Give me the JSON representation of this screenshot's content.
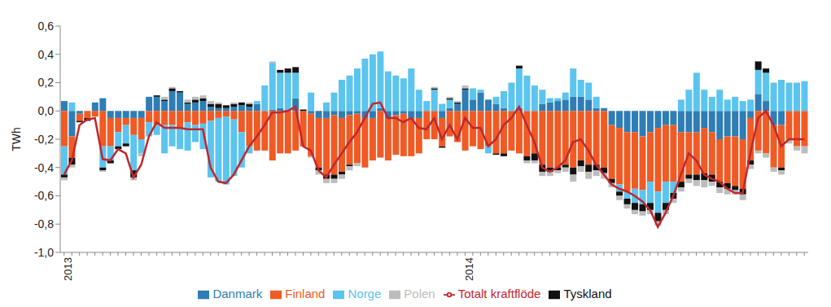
{
  "chart_data": {
    "type": "bar",
    "stacked": true,
    "y_label": "TWh",
    "legend": "bottom",
    "grid": false,
    "categories": [
      "2013",
      null,
      null,
      null,
      null,
      null,
      null,
      null,
      null,
      null,
      null,
      null,
      null,
      null,
      null,
      null,
      null,
      null,
      null,
      null,
      null,
      null,
      null,
      null,
      null,
      null,
      null,
      null,
      null,
      null,
      null,
      null,
      null,
      null,
      null,
      null,
      null,
      null,
      null,
      null,
      null,
      null,
      null,
      null,
      null,
      null,
      null,
      null,
      null,
      null,
      null,
      null,
      "2014",
      null,
      null,
      null,
      null,
      null,
      null,
      null,
      null,
      null,
      null,
      null,
      null,
      null,
      null,
      null,
      null,
      null,
      null,
      null,
      null,
      null,
      null,
      null,
      null,
      null,
      null,
      null,
      null,
      null,
      null,
      null,
      null,
      null,
      null,
      null,
      null,
      null,
      null,
      null,
      null,
      null,
      null,
      null,
      null
    ],
    "ylim": [
      -1.0,
      0.6
    ],
    "yticks": [
      {
        "value": 0.6,
        "label": "0,6"
      },
      {
        "value": 0.4,
        "label": "0,4"
      },
      {
        "value": 0.2,
        "label": "0,2"
      },
      {
        "value": 0,
        "label": "0,0"
      },
      {
        "value": -0.2,
        "label": "-0,2"
      },
      {
        "value": -0.4,
        "label": "-0,4"
      },
      {
        "value": -0.6,
        "label": "-0,6"
      },
      {
        "value": -0.8,
        "label": "-0,8"
      },
      {
        "value": -1.0,
        "label": "-1,0"
      }
    ],
    "series": [
      {
        "name": "Danmark",
        "type": "bar",
        "color": "#2e7db5",
        "values": [
          0.07,
          -0.18,
          -0.02,
          0,
          0.06,
          0.09,
          -0.05,
          -0.05,
          -0.05,
          -0.05,
          -0.05,
          0.1,
          0.1,
          0.07,
          0.14,
          0.13,
          0.05,
          0.06,
          0.07,
          0.03,
          0.02,
          0.02,
          0.03,
          0.04,
          0.03,
          0.05,
          0,
          0.01,
          0.02,
          0.01,
          0.09,
          0,
          -0.02,
          -0.05,
          -0.05,
          -0.03,
          -0.05,
          -0.03,
          -0.02,
          -0.05,
          -0.05,
          0.02,
          -0.05,
          -0.03,
          -0.02,
          -0.05,
          -0.05,
          0,
          0,
          -0.05,
          0.02,
          0.05,
          0.15,
          0.08,
          0.13,
          0.08,
          0.05,
          0.02,
          0,
          0.02,
          0,
          0,
          0.05,
          0.06,
          0.07,
          0.08,
          0.1,
          0.1,
          0.08,
          0.02,
          0.02,
          -0.1,
          -0.12,
          -0.15,
          -0.15,
          -0.18,
          -0.15,
          -0.12,
          -0.1,
          -0.1,
          -0.15,
          -0.15,
          -0.15,
          -0.12,
          -0.15,
          -0.2,
          -0.18,
          -0.18,
          -0.2,
          -0.05,
          0.12,
          0.07,
          -0.1,
          -0.1,
          0,
          0,
          0
        ]
      },
      {
        "name": "Finland",
        "type": "bar",
        "color": "#f05a24",
        "values": [
          -0.25,
          -0.15,
          -0.05,
          -0.05,
          -0.04,
          -0.25,
          -0.2,
          -0.1,
          -0.05,
          -0.12,
          -0.15,
          -0.08,
          -0.1,
          -0.1,
          -0.1,
          -0.12,
          -0.08,
          -0.1,
          -0.09,
          -0.07,
          -0.05,
          -0.04,
          -0.06,
          -0.15,
          -0.25,
          -0.28,
          -0.28,
          -0.35,
          -0.3,
          -0.3,
          -0.28,
          -0.25,
          -0.3,
          -0.35,
          -0.4,
          -0.42,
          -0.38,
          -0.35,
          -0.35,
          -0.35,
          -0.3,
          -0.33,
          -0.3,
          -0.28,
          -0.3,
          -0.27,
          -0.25,
          -0.2,
          -0.2,
          -0.2,
          -0.18,
          -0.22,
          -0.28,
          -0.25,
          -0.27,
          -0.25,
          -0.3,
          -0.3,
          -0.28,
          -0.3,
          -0.32,
          -0.3,
          -0.38,
          -0.4,
          -0.4,
          -0.38,
          -0.4,
          -0.35,
          -0.38,
          -0.38,
          -0.4,
          -0.38,
          -0.4,
          -0.42,
          -0.4,
          -0.38,
          -0.35,
          -0.45,
          -0.4,
          -0.4,
          -0.35,
          -0.3,
          -0.3,
          -0.32,
          -0.3,
          -0.3,
          -0.33,
          -0.35,
          -0.35,
          -0.3,
          -0.28,
          -0.3,
          -0.3,
          -0.3,
          -0.2,
          -0.25,
          -0.25
        ]
      },
      {
        "name": "Norge",
        "type": "bar",
        "color": "#5bc4ef",
        "values": [
          -0.2,
          0.06,
          0,
          0,
          0,
          -0.15,
          -0.1,
          -0.1,
          -0.13,
          -0.25,
          -0.1,
          -0.1,
          -0.07,
          -0.2,
          -0.15,
          -0.15,
          -0.2,
          -0.12,
          -0.18,
          -0.4,
          -0.45,
          -0.48,
          -0.4,
          -0.25,
          -0.05,
          0.02,
          0.18,
          0.33,
          0.25,
          0.26,
          0.18,
          0,
          0.13,
          0,
          0.06,
          0.13,
          0.22,
          0.25,
          0.3,
          0.37,
          0.4,
          0.4,
          0.28,
          0.25,
          0.23,
          0.3,
          0.15,
          0.07,
          0.15,
          0.05,
          0.06,
          0,
          0,
          0.08,
          0.02,
          -0.05,
          0.05,
          0.12,
          0.2,
          0.28,
          0.25,
          0.18,
          0.1,
          0.03,
          0.02,
          0.05,
          0.2,
          0.12,
          0.12,
          0.08,
          0,
          0,
          -0.05,
          -0.05,
          -0.1,
          -0.1,
          -0.15,
          -0.15,
          -0.15,
          -0.08,
          0.08,
          0.15,
          0.27,
          0.15,
          0.1,
          0.15,
          0.08,
          0.1,
          0.07,
          0.08,
          0.17,
          0.2,
          0.2,
          0.22,
          0.2,
          0.2,
          0.21
        ]
      },
      {
        "name": "Tyskland",
        "type": "bar",
        "color": "#111111",
        "values": [
          -0.02,
          -0.05,
          -0.01,
          -0.02,
          0,
          -0.02,
          -0.02,
          -0.02,
          -0.02,
          -0.05,
          0,
          0,
          0.01,
          0.01,
          0.02,
          0.01,
          0.01,
          0.02,
          0.02,
          0.02,
          0.03,
          0.02,
          0.02,
          0.02,
          0.02,
          0,
          0,
          0,
          0.02,
          0.03,
          0.04,
          0.01,
          0,
          -0.02,
          -0.03,
          -0.03,
          -0.02,
          -0.01,
          0,
          0,
          0,
          0,
          0,
          0,
          0,
          0,
          0,
          0,
          0.01,
          -0.01,
          0.01,
          0.01,
          0.01,
          0,
          0,
          0,
          -0.01,
          -0.02,
          0,
          0.02,
          -0.03,
          -0.05,
          -0.05,
          -0.03,
          -0.02,
          -0.02,
          -0.05,
          -0.04,
          -0.05,
          -0.04,
          -0.04,
          -0.03,
          -0.03,
          -0.04,
          -0.05,
          -0.05,
          -0.05,
          -0.06,
          -0.05,
          -0.04,
          -0.04,
          -0.03,
          -0.04,
          -0.05,
          -0.05,
          -0.04,
          -0.04,
          -0.03,
          -0.04,
          -0.03,
          0.06,
          0.03,
          0,
          -0.02,
          0,
          0,
          0
        ]
      },
      {
        "name": "Polen",
        "type": "bar",
        "color": "#bdbdbd",
        "values": [
          -0.02,
          -0.02,
          0,
          0,
          0,
          -0.01,
          0,
          0,
          0,
          -0.02,
          -0.02,
          0,
          0,
          0.02,
          0.01,
          0,
          0.02,
          0.02,
          0.02,
          0.02,
          0.01,
          0,
          0.01,
          0,
          0.01,
          0,
          0,
          0.01,
          0,
          0,
          0,
          0,
          -0.01,
          -0.03,
          -0.03,
          -0.03,
          -0.03,
          -0.03,
          -0.02,
          0,
          0,
          0,
          0,
          0,
          0,
          0,
          0,
          0,
          0.01,
          0,
          0.01,
          0.01,
          0.02,
          0,
          0,
          0,
          0,
          0,
          0,
          0,
          -0.02,
          -0.02,
          -0.03,
          -0.03,
          -0.02,
          -0.03,
          -0.05,
          -0.04,
          -0.05,
          -0.04,
          -0.04,
          -0.03,
          -0.03,
          -0.03,
          -0.03,
          -0.03,
          -0.03,
          -0.03,
          -0.03,
          -0.03,
          -0.03,
          -0.03,
          -0.04,
          -0.05,
          -0.03,
          -0.04,
          -0.04,
          -0.03,
          -0.04,
          -0.03,
          -0.02,
          -0.03,
          -0.03,
          -0.03,
          -0.03,
          -0.03,
          -0.05
        ]
      },
      {
        "name": "Totalt kraftflöde",
        "type": "line",
        "color": "#c1272d",
        "values": [
          -0.45,
          -0.35,
          -0.1,
          -0.06,
          -0.05,
          -0.34,
          -0.35,
          -0.27,
          -0.3,
          -0.47,
          -0.38,
          -0.18,
          -0.08,
          -0.12,
          -0.12,
          -0.12,
          -0.13,
          -0.13,
          -0.13,
          -0.4,
          -0.5,
          -0.51,
          -0.45,
          -0.35,
          -0.25,
          -0.18,
          -0.1,
          -0.01,
          -0.01,
          0,
          0.03,
          -0.25,
          -0.28,
          -0.42,
          -0.47,
          -0.38,
          -0.3,
          -0.22,
          -0.15,
          -0.05,
          0.05,
          0.06,
          -0.05,
          -0.05,
          -0.08,
          -0.05,
          -0.12,
          -0.13,
          -0.05,
          -0.2,
          -0.1,
          -0.2,
          -0.05,
          -0.12,
          -0.12,
          -0.25,
          -0.2,
          -0.1,
          -0.05,
          0.03,
          -0.1,
          -0.22,
          -0.4,
          -0.43,
          -0.4,
          -0.35,
          -0.22,
          -0.2,
          -0.28,
          -0.38,
          -0.45,
          -0.52,
          -0.55,
          -0.57,
          -0.6,
          -0.64,
          -0.7,
          -0.82,
          -0.72,
          -0.6,
          -0.45,
          -0.3,
          -0.35,
          -0.45,
          -0.48,
          -0.5,
          -0.55,
          -0.58,
          -0.58,
          -0.3,
          -0.05,
          0,
          -0.1,
          -0.25,
          -0.2,
          -0.2,
          -0.2
        ]
      }
    ]
  }
}
